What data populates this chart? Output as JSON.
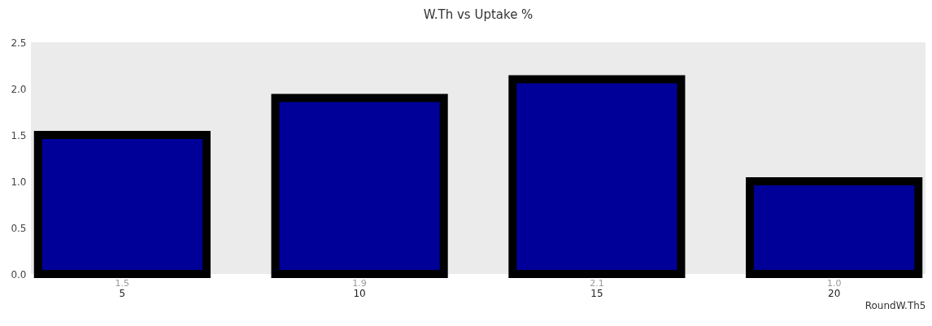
{
  "chart_data": {
    "type": "bar",
    "title": "W.Th vs Uptake  %",
    "xlabel": "RoundW.Th5",
    "categories": [
      "5",
      "10",
      "15",
      "20"
    ],
    "values": [
      1.5,
      1.9,
      2.1,
      1.0
    ],
    "value_labels": [
      "1.5",
      "1.9",
      "2.1",
      "1.0"
    ],
    "color": "#000099",
    "ylim": [
      0,
      2.5
    ],
    "yticks": [
      {
        "value": 0,
        "label": "0.0"
      },
      {
        "value": 0.5,
        "label": "0.5"
      },
      {
        "value": 1,
        "label": "1.0"
      },
      {
        "value": 1.5,
        "label": "1.5"
      },
      {
        "value": 2,
        "label": "2.0"
      },
      {
        "value": 2.5,
        "label": "2.5"
      }
    ],
    "grid": false
  }
}
